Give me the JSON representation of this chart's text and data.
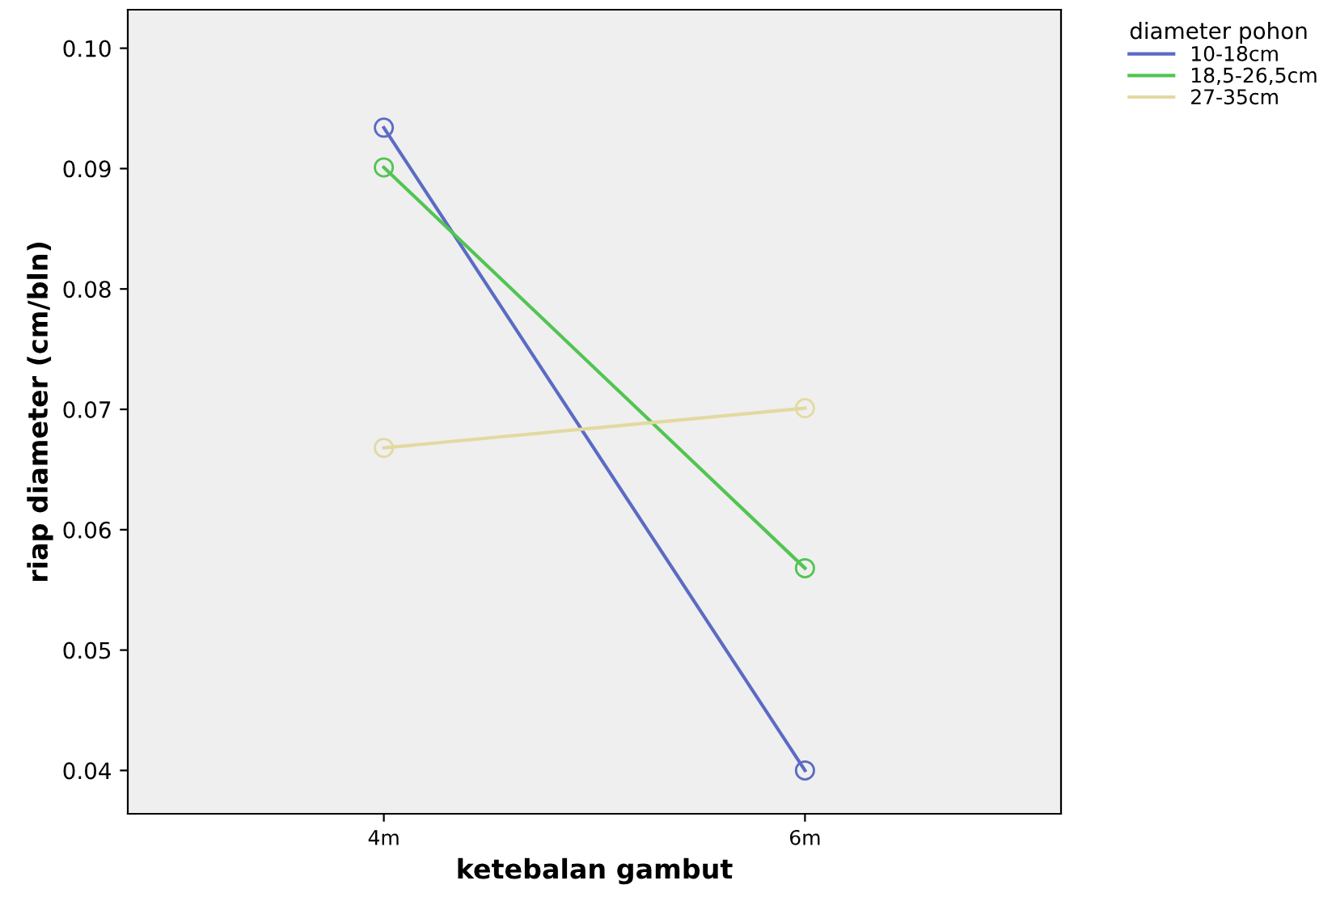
{
  "chart_data": {
    "type": "line",
    "xlabel": "ketebalan gambut",
    "ylabel": "riap diameter (cm/bln)",
    "legend_title": "diameter pohon",
    "categories": [
      "4m",
      "6m"
    ],
    "series": [
      {
        "name": "10-18cm",
        "color": "#5b6bc4",
        "values": [
          0.0934,
          0.04
        ]
      },
      {
        "name": "18,5-26,5cm",
        "color": "#52c452",
        "values": [
          0.0901,
          0.0568
        ]
      },
      {
        "name": "27-35cm",
        "color": "#e3d9a0",
        "values": [
          0.0668,
          0.0701
        ]
      }
    ],
    "ylim": [
      0.0364,
      0.1032
    ],
    "yticks": [
      {
        "value": 0.04,
        "label": "0.04"
      },
      {
        "value": 0.05,
        "label": "0.05"
      },
      {
        "value": 0.06,
        "label": "0.06"
      },
      {
        "value": 0.07,
        "label": "0.07"
      },
      {
        "value": 0.08,
        "label": "0.08"
      },
      {
        "value": 0.09,
        "label": "0.09"
      },
      {
        "value": 0.1,
        "label": "0.10"
      }
    ],
    "grid": false,
    "legend": "top right",
    "marker": "circle",
    "line_style": "solid"
  }
}
